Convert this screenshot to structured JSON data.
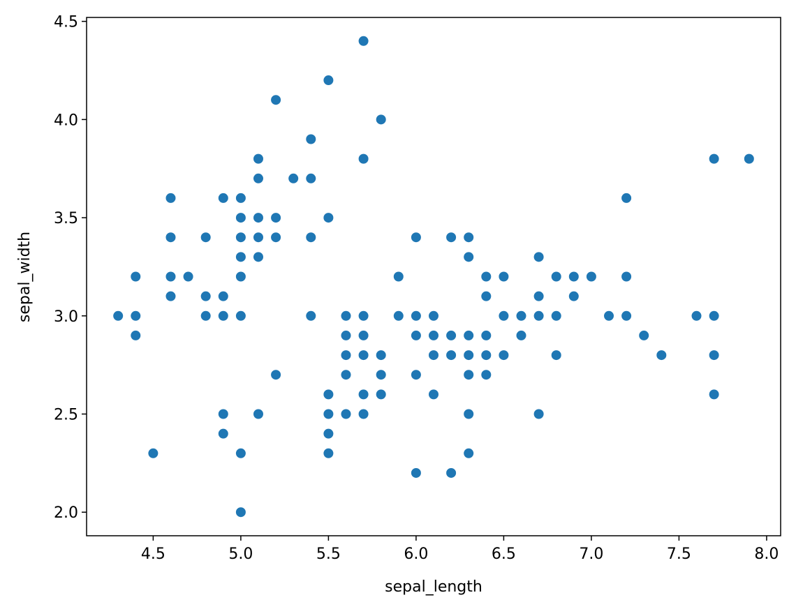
{
  "chart_data": {
    "type": "scatter",
    "x_label": "sepal_length",
    "y_label": "sepal_width",
    "color": "#1f77b4",
    "x": [
      4.3,
      4.4,
      4.4,
      4.4,
      4.5,
      4.6,
      4.6,
      4.6,
      4.6,
      4.7,
      4.8,
      4.8,
      4.8,
      4.9,
      4.9,
      4.9,
      4.9,
      4.9,
      5.0,
      5.0,
      5.0,
      5.0,
      5.0,
      5.0,
      5.0,
      5.0,
      5.1,
      5.1,
      5.1,
      5.1,
      5.1,
      5.1,
      5.2,
      5.2,
      5.2,
      5.2,
      5.3,
      5.4,
      5.4,
      5.4,
      5.4,
      5.5,
      5.5,
      5.5,
      5.5,
      5.5,
      5.5,
      5.6,
      5.6,
      5.6,
      5.6,
      5.6,
      5.7,
      5.7,
      5.7,
      5.7,
      5.7,
      5.7,
      5.7,
      5.8,
      5.8,
      5.8,
      5.8,
      5.9,
      5.9,
      6.0,
      6.0,
      6.0,
      6.0,
      6.0,
      6.1,
      6.1,
      6.1,
      6.1,
      6.2,
      6.2,
      6.2,
      6.2,
      6.3,
      6.3,
      6.3,
      6.3,
      6.3,
      6.3,
      6.3,
      6.4,
      6.4,
      6.4,
      6.4,
      6.4,
      6.5,
      6.5,
      6.5,
      6.6,
      6.6,
      6.7,
      6.7,
      6.7,
      6.7,
      6.8,
      6.8,
      6.8,
      6.9,
      6.9,
      7.0,
      7.1,
      7.2,
      7.2,
      7.2,
      7.3,
      7.4,
      7.6,
      7.7,
      7.7,
      7.7,
      7.7,
      7.9
    ],
    "values": [
      3.0,
      3.2,
      3.0,
      2.9,
      2.3,
      3.6,
      3.4,
      3.2,
      3.1,
      3.2,
      3.4,
      3.1,
      3.0,
      3.6,
      3.1,
      3.0,
      2.5,
      2.4,
      3.6,
      3.5,
      3.4,
      3.3,
      3.2,
      3.0,
      2.3,
      2.0,
      3.8,
      3.7,
      3.5,
      3.4,
      3.3,
      2.5,
      4.1,
      3.5,
      3.4,
      2.7,
      3.7,
      3.9,
      3.7,
      3.4,
      3.0,
      4.2,
      3.5,
      2.6,
      2.5,
      2.4,
      2.3,
      3.0,
      2.9,
      2.8,
      2.7,
      2.5,
      4.4,
      3.8,
      3.0,
      2.9,
      2.8,
      2.6,
      2.5,
      4.0,
      2.8,
      2.7,
      2.6,
      3.2,
      3.0,
      3.4,
      3.0,
      2.9,
      2.7,
      2.2,
      3.0,
      2.9,
      2.8,
      2.6,
      3.4,
      2.9,
      2.8,
      2.2,
      3.4,
      3.3,
      2.9,
      2.8,
      2.7,
      2.5,
      2.3,
      3.2,
      3.1,
      2.9,
      2.8,
      2.7,
      3.2,
      3.0,
      2.8,
      3.0,
      2.9,
      3.3,
      3.1,
      3.0,
      2.5,
      3.2,
      3.0,
      2.8,
      3.2,
      3.1,
      3.2,
      3.0,
      3.6,
      3.2,
      3.0,
      2.9,
      2.8,
      3.0,
      3.8,
      3.0,
      2.8,
      2.6,
      3.8
    ],
    "xlim": [
      4.12,
      8.08
    ],
    "ylim": [
      1.88,
      4.52
    ],
    "xticks": [
      4.5,
      {
        "value": 5.0,
        "label": "5.0"
      },
      5.5,
      {
        "value": 6.0,
        "label": "6.0"
      },
      6.5,
      {
        "value": 7.0,
        "label": "7.0"
      },
      7.5,
      {
        "value": 8.0,
        "label": "8.0"
      }
    ],
    "yticks": [
      {
        "value": 2.0,
        "label": "2.0"
      },
      2.5,
      {
        "value": 3.0,
        "label": "3.0"
      },
      3.5,
      {
        "value": 4.0,
        "label": "4.0"
      },
      4.5
    ]
  }
}
